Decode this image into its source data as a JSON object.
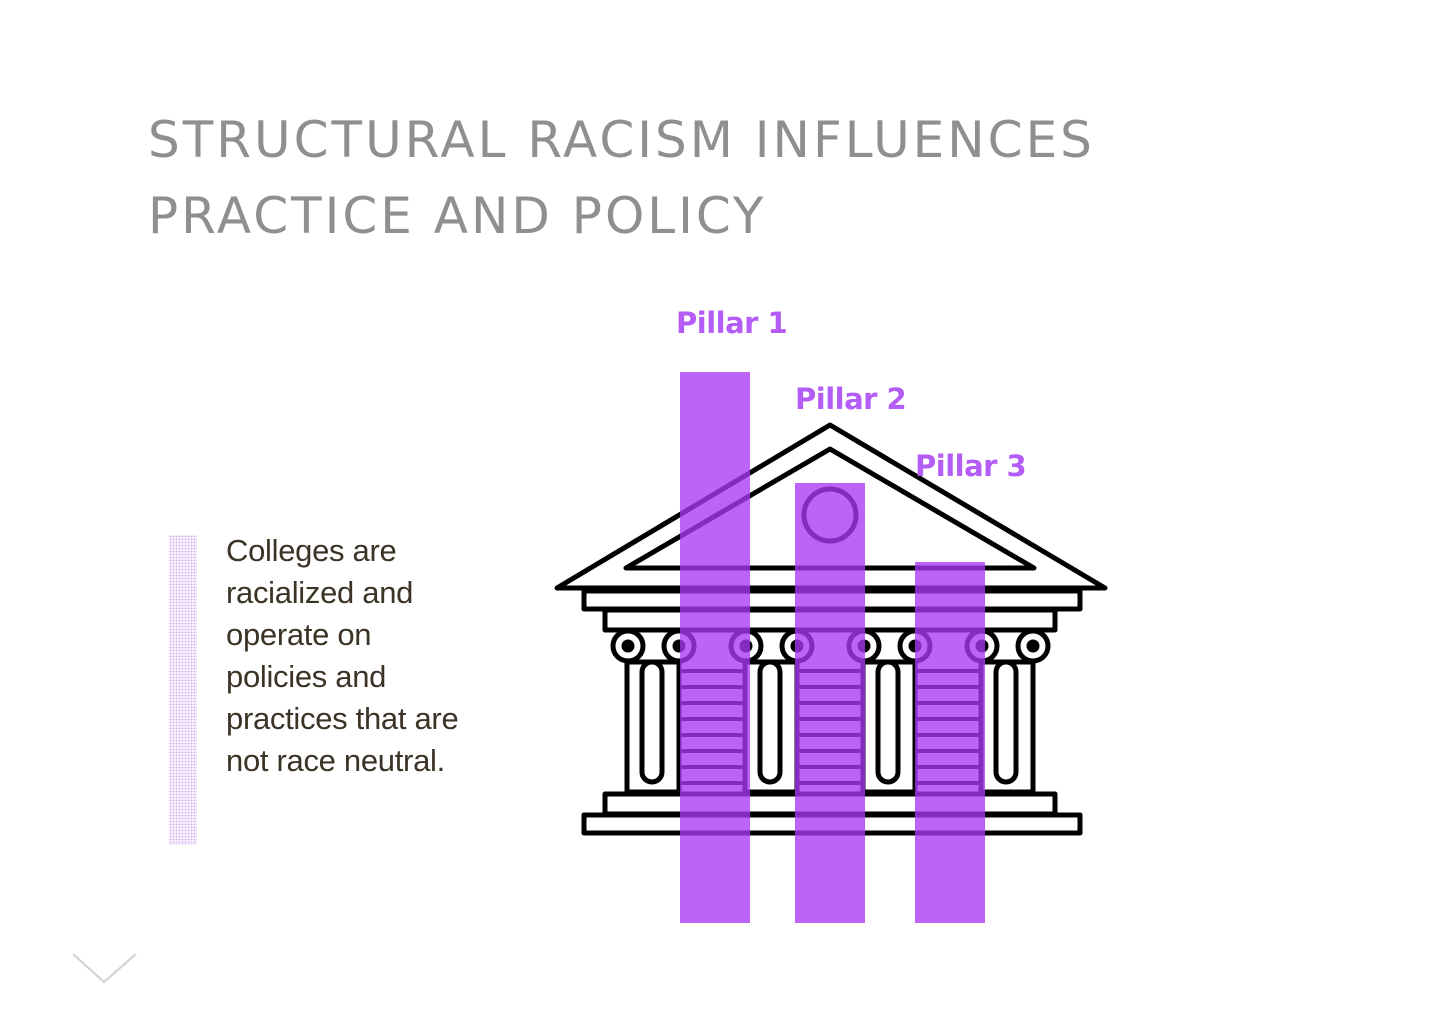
{
  "title": {
    "line1": "STRUCTURAL RACISM INFLUENCES",
    "line2": "PRACTICE AND POLICY"
  },
  "description": "Colleges are racialized and operate on policies and practices that are not race neutral.",
  "pillars": [
    {
      "label": "Pillar 1"
    },
    {
      "label": "Pillar 2"
    },
    {
      "label": "Pillar 3"
    }
  ],
  "colors": {
    "accent": "#b45cf6",
    "title": "#8f8f8f",
    "body_text": "#3b3426",
    "outline": "#000000",
    "dotted_bar": "#d9b3f3"
  },
  "icons": {
    "building": "classical-building-icon",
    "scroll_down": "chevron-down-icon"
  }
}
